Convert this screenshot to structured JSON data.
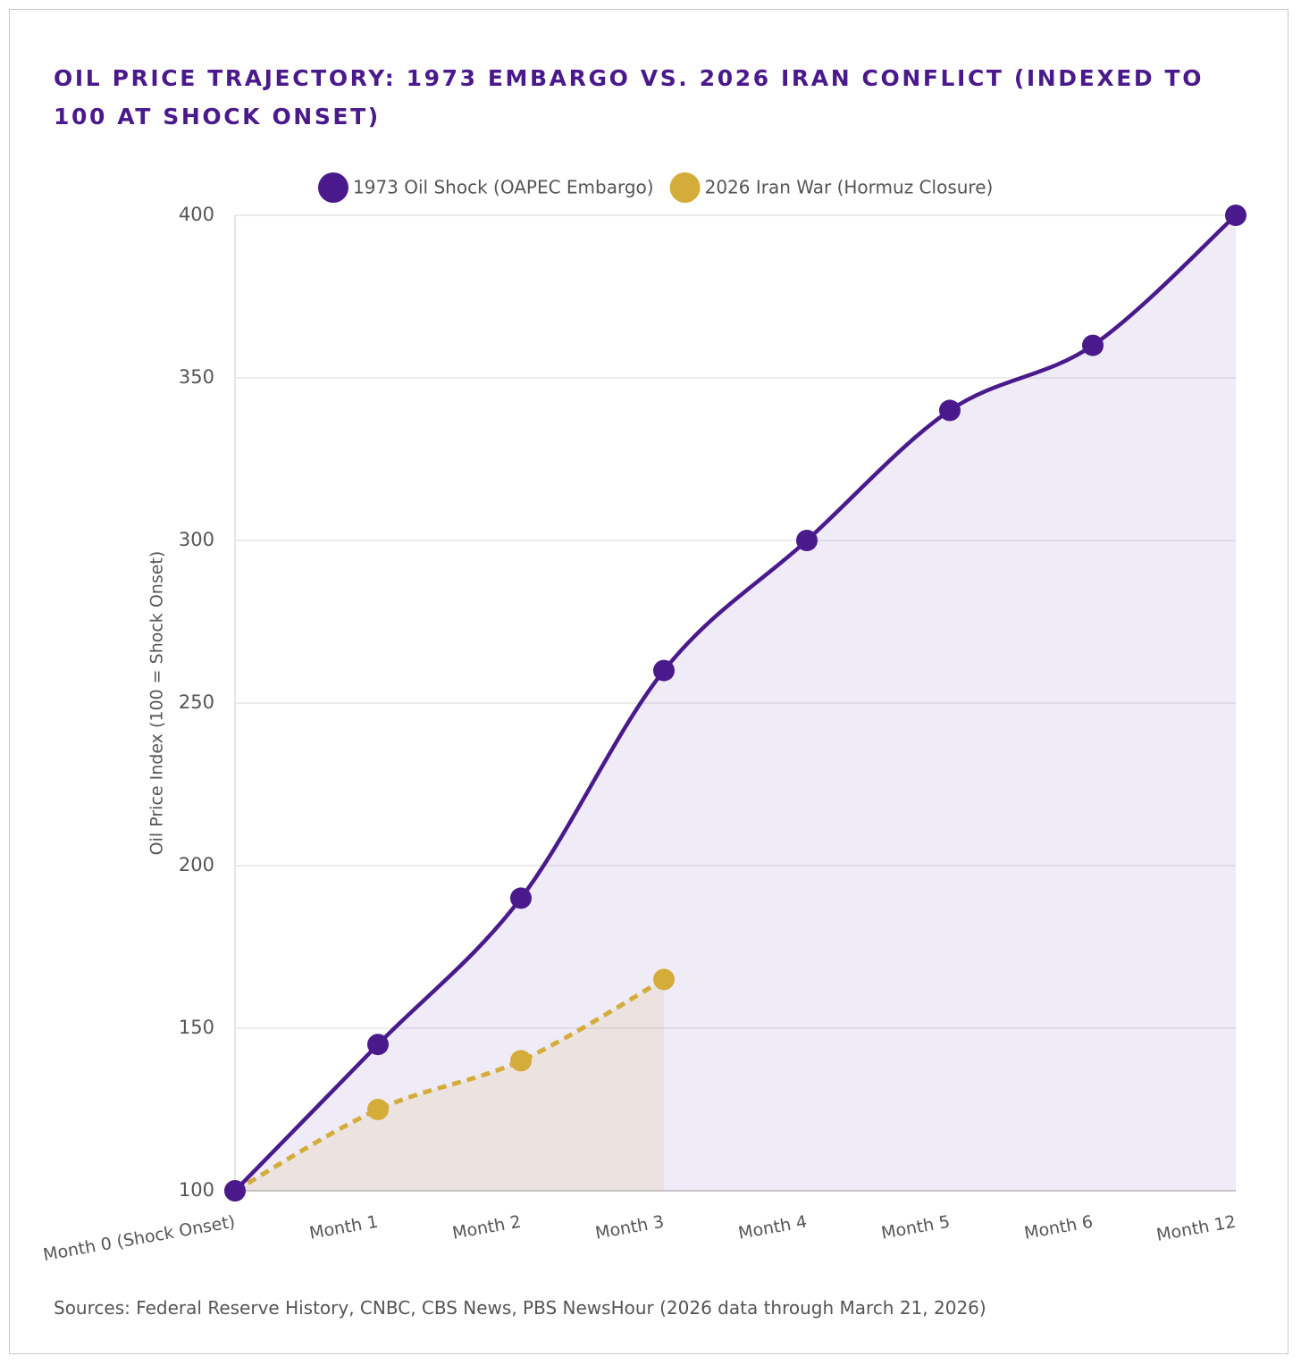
{
  "chart_data": {
    "type": "line",
    "title": "Oil Price Trajectory: 1973 Embargo vs. 2026 Iran Conflict (Indexed to 100 at Shock Onset)",
    "y_label": "Oil Price Index (100 = Shock Onset)",
    "source": "Sources: Federal Reserve History, CNBC, CBS News, PBS NewsHour (2026 data through March 21, 2026)",
    "categories": [
      "Month 0 (Shock Onset)",
      "Month 1",
      "Month 2",
      "Month 3",
      "Month 4",
      "Month 5",
      "Month 6",
      "Month 12"
    ],
    "series": [
      {
        "name": "1973 Oil Shock (OAPEC Embargo)",
        "color": "#4a1a8c",
        "fill": "rgba(140,110,200,0.14)",
        "dashed": false,
        "values": [
          100,
          145,
          190,
          260,
          300,
          340,
          360,
          400
        ]
      },
      {
        "name": "2026 Iran War (Hormuz Closure)",
        "color": "#d4ac3a",
        "fill": "rgba(212,172,58,0.12)",
        "dashed": true,
        "values": [
          100,
          125,
          140,
          165,
          null,
          null,
          null,
          null
        ]
      }
    ],
    "ylim": [
      100,
      400
    ],
    "yticks": [
      100,
      150,
      200,
      250,
      300,
      350,
      400
    ],
    "grid": true,
    "legend": "top"
  }
}
